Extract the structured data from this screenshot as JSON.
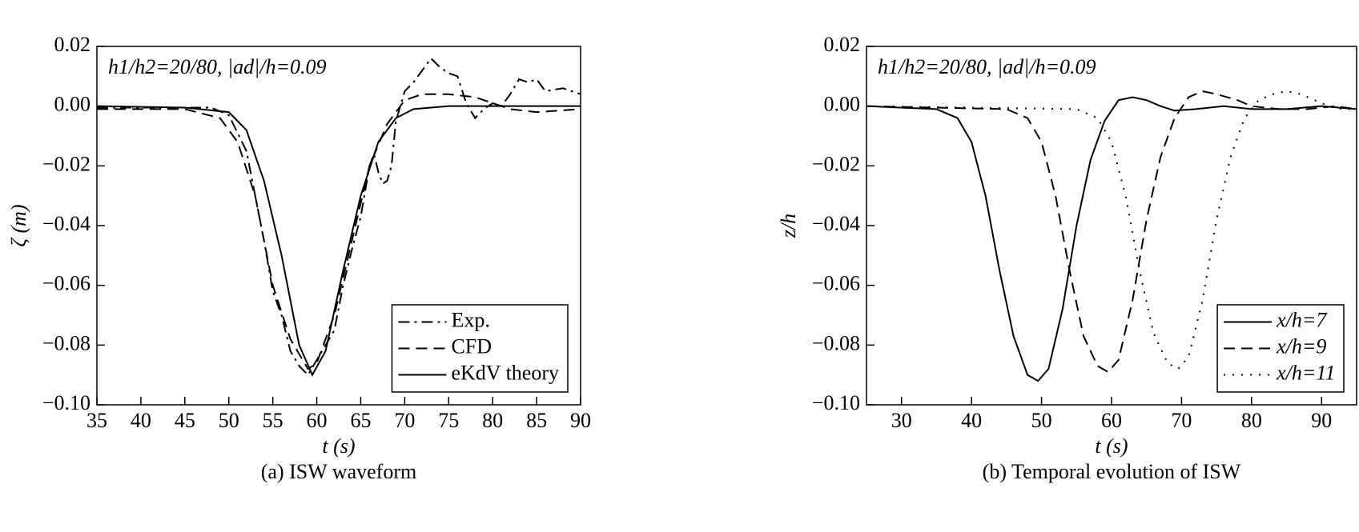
{
  "chart_data": [
    {
      "type": "line",
      "annotation": "h1/h2=20/80, |ad|/h=0.09",
      "xlabel": "t (s)",
      "ylabel": "ζ (m)",
      "caption": "(a) ISW waveform",
      "xlim": [
        35,
        90
      ],
      "xticks": [
        35,
        40,
        45,
        50,
        55,
        60,
        65,
        70,
        75,
        80,
        85,
        90
      ],
      "ylim": [
        -0.1,
        0.02
      ],
      "yticks": [
        0.02,
        {
          "value": 0,
          "label": "0.00"
        },
        {
          "value": -0.02,
          "label": "−0.02"
        },
        {
          "value": -0.04,
          "label": "−0.04"
        },
        {
          "value": -0.06,
          "label": "−0.06"
        },
        {
          "value": -0.08,
          "label": "−0.08"
        },
        {
          "value": -0.1,
          "label": "−0.10"
        }
      ],
      "legend": "lower right",
      "series": [
        {
          "name": "Exp.",
          "color": "#000000",
          "dash": "dashdot",
          "x": [
            35,
            48,
            50,
            52,
            53,
            54,
            55,
            56,
            57,
            58,
            59,
            60,
            61,
            62,
            63,
            64,
            65,
            66,
            66.5,
            67,
            67.5,
            68,
            68.5,
            69,
            70,
            71,
            72,
            73,
            74,
            75,
            76,
            77,
            78,
            79,
            80,
            81,
            82,
            83,
            84,
            85,
            86,
            88,
            90
          ],
          "values": [
            -0.0005,
            -0.0005,
            -0.003,
            -0.015,
            -0.03,
            -0.045,
            -0.062,
            -0.07,
            -0.082,
            -0.087,
            -0.09,
            -0.085,
            -0.08,
            -0.075,
            -0.06,
            -0.048,
            -0.037,
            -0.02,
            -0.016,
            -0.022,
            -0.026,
            -0.025,
            -0.02,
            -0.005,
            0.005,
            0.008,
            0.012,
            0.016,
            0.013,
            0.011,
            0.01,
            0.001,
            -0.004,
            -0.001,
            0.001,
            0,
            0.004,
            0.009,
            0.008,
            0.009,
            0.005,
            0.006,
            0.004
          ]
        },
        {
          "name": "CFD",
          "color": "#000000",
          "dash": "dashed",
          "x": [
            35,
            45,
            49,
            51,
            53,
            55,
            57,
            59,
            60,
            62,
            64,
            66,
            68,
            70,
            72,
            75,
            78,
            80,
            82,
            85,
            90
          ],
          "values": [
            -0.001,
            -0.001,
            -0.004,
            -0.012,
            -0.03,
            -0.06,
            -0.078,
            -0.088,
            -0.086,
            -0.07,
            -0.045,
            -0.02,
            -0.006,
            0.002,
            0.004,
            0.004,
            0.003,
            0.001,
            -0.001,
            -0.002,
            -0.001
          ]
        },
        {
          "name": "eKdV theory",
          "color": "#000000",
          "dash": "solid",
          "x": [
            35,
            45,
            50,
            52,
            54,
            56,
            58,
            59.5,
            61,
            63,
            65,
            67,
            69,
            71,
            75,
            90
          ],
          "values": [
            0,
            -0.0005,
            -0.002,
            -0.008,
            -0.025,
            -0.05,
            -0.08,
            -0.09,
            -0.082,
            -0.055,
            -0.03,
            -0.012,
            -0.004,
            -0.001,
            0,
            0
          ]
        }
      ]
    },
    {
      "type": "line",
      "annotation": "h1/h2=20/80, |ad|/h=0.09",
      "xlabel": "t (s)",
      "ylabel": "z/h",
      "caption": "(b) Temporal evolution of ISW",
      "xlim": [
        25,
        95
      ],
      "xticks": [
        30,
        40,
        50,
        60,
        70,
        80,
        90
      ],
      "ylim": [
        -0.1,
        0.02
      ],
      "yticks": [
        0.02,
        {
          "value": 0,
          "label": "0.00"
        },
        {
          "value": -0.02,
          "label": "−0.02"
        },
        {
          "value": -0.04,
          "label": "−0.04"
        },
        {
          "value": -0.06,
          "label": "−0.06"
        },
        {
          "value": -0.08,
          "label": "−0.08"
        },
        {
          "value": -0.1,
          "label": "−0.10"
        }
      ],
      "legend": "lower right",
      "series": [
        {
          "name": "x/h=7",
          "color": "#000000",
          "dash": "solid",
          "x": [
            25,
            35,
            38,
            40,
            42,
            44,
            46,
            48,
            49.5,
            51,
            53,
            55,
            57,
            59,
            61,
            63,
            65,
            67,
            69,
            72,
            76,
            80,
            85,
            90,
            95
          ],
          "values": [
            0,
            -0.001,
            -0.004,
            -0.012,
            -0.03,
            -0.055,
            -0.077,
            -0.09,
            -0.092,
            -0.088,
            -0.068,
            -0.04,
            -0.018,
            -0.005,
            0.002,
            0.003,
            0.002,
            0,
            -0.0015,
            -0.001,
            0,
            -0.001,
            -0.001,
            0,
            -0.001
          ]
        },
        {
          "name": "x/h=9",
          "color": "#000000",
          "dash": "dashed",
          "x": [
            25,
            45,
            48,
            50,
            52,
            54,
            56,
            58,
            59.5,
            61,
            63,
            65,
            67,
            69,
            71,
            73,
            75,
            78,
            80,
            84,
            88,
            92,
            95
          ],
          "values": [
            0,
            -0.001,
            -0.004,
            -0.012,
            -0.03,
            -0.055,
            -0.077,
            -0.087,
            -0.089,
            -0.085,
            -0.065,
            -0.038,
            -0.017,
            -0.004,
            0.003,
            0.005,
            0.004,
            0.002,
            0,
            -0.001,
            -0.001,
            0,
            -0.001
          ]
        },
        {
          "name": "x/h=11",
          "color": "#000000",
          "dash": "dotted",
          "x": [
            25,
            55,
            58,
            60,
            62,
            64,
            66,
            68,
            69.5,
            71,
            73,
            75,
            77,
            79,
            81,
            83,
            85,
            87,
            89,
            91,
            93,
            95
          ],
          "values": [
            0,
            -0.001,
            -0.004,
            -0.012,
            -0.03,
            -0.055,
            -0.076,
            -0.086,
            -0.088,
            -0.084,
            -0.065,
            -0.038,
            -0.017,
            -0.004,
            0.002,
            0.004,
            0.005,
            0.004,
            0.002,
            0,
            -0.001,
            -0.001
          ]
        }
      ]
    }
  ]
}
